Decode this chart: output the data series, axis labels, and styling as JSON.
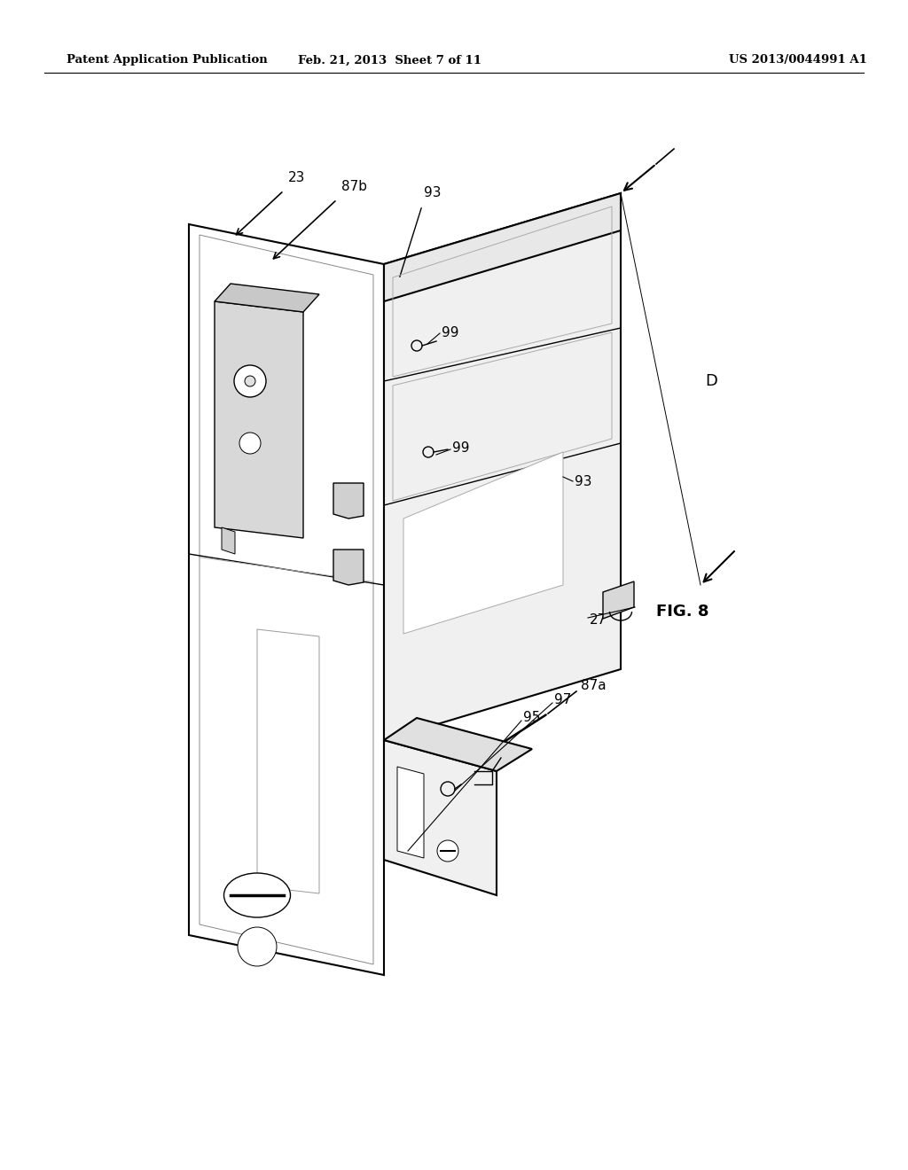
{
  "bg_color": "#ffffff",
  "header_left": "Patent Application Publication",
  "header_center": "Feb. 21, 2013  Sheet 7 of 11",
  "header_right": "US 2013/0044991 A1",
  "fig_label": "FIG. 8"
}
